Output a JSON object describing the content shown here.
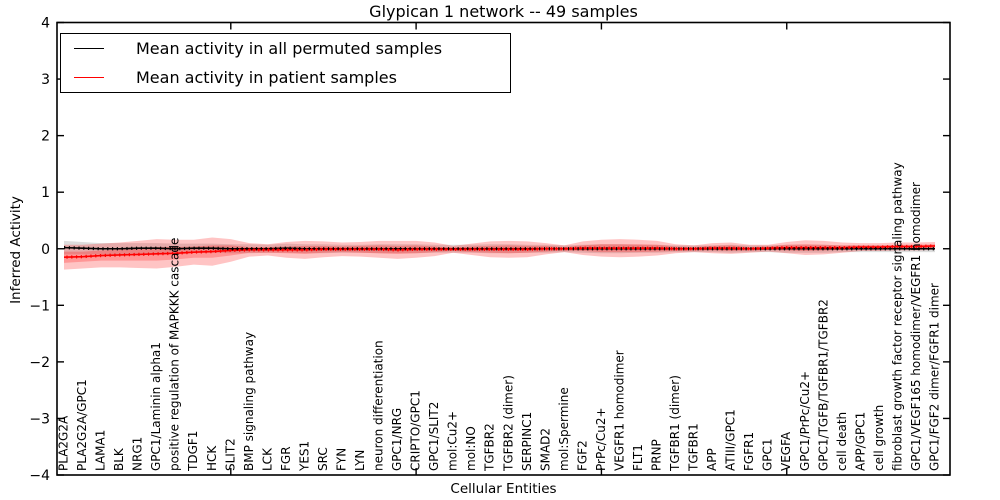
{
  "title": "Glypican 1 network -- 49 samples",
  "legend": {
    "items": [
      {
        "label": "Mean activity in all permuted samples",
        "color": "#000000"
      },
      {
        "label": "Mean activity in patient samples",
        "color": "#ff0000"
      }
    ]
  },
  "chart_data": {
    "type": "line",
    "title": "Glypican 1 network -- 49 samples",
    "xlabel": "Cellular Entities",
    "ylabel": "Inferred Activity",
    "ylim": [
      -4,
      4
    ],
    "yticks": [
      -4,
      -3,
      -2,
      -1,
      0,
      1,
      2,
      3,
      4
    ],
    "xtick_positions": [
      9,
      19,
      29,
      39
    ],
    "grid": false,
    "legend_position": "upper left",
    "frame_color": "#000000",
    "categories": [
      "PLA2G2A",
      "PLA2G2A/GPC1",
      "LAMA1",
      "BLK",
      "NRG1",
      "GPC1/Laminin alpha1",
      "positive regulation of MAPKKK cascade",
      "TDGF1",
      "HCK",
      "SLIT2",
      "BMP signaling pathway",
      "LCK",
      "FGR",
      "YES1",
      "SRC",
      "FYN",
      "LYN",
      "neuron differentiation",
      "GPC1/NRG",
      "CRIPTO/GPC1",
      "GPC1/SLIT2",
      "mol:Cu2+",
      "mol:NO",
      "TGFBR2",
      "TGFBR2 (dimer)",
      "SERPINC1",
      "SMAD2",
      "mol:Spermine",
      "FGF2",
      "PrPc/Cu2+",
      "VEGFR1 homodimer",
      "FLT1",
      "PRNP",
      "TGFBR1 (dimer)",
      "TGFBR1",
      "APP",
      "ATIII/GPC1",
      "FGFR1",
      "GPC1",
      "VEGFA",
      "GPC1/PrPc/Cu2+",
      "GPC1/TGFB/TGFBR1/TGFBR2",
      "cell death",
      "APP/GPC1",
      "cell growth",
      "fibroblast growth factor receptor signaling pathway",
      "GPC1/VEGF165 homodimer/VEGFR1 homodimer",
      "GPC1/FGF2 dimer/FGFR1 dimer"
    ],
    "series": [
      {
        "name": "Mean activity in all permuted samples",
        "color": "#000000",
        "band_fill": "rgba(100,100,100,0.22)",
        "values": [
          0.02,
          0.01,
          0,
          0,
          0.01,
          0.01,
          0,
          0.01,
          0.01,
          0,
          0,
          0,
          0.01,
          0,
          0,
          0,
          0,
          0,
          0,
          0,
          0,
          0,
          0,
          0,
          0,
          0,
          0,
          0,
          0,
          0,
          0,
          0,
          0,
          0,
          0,
          0,
          0,
          0,
          0,
          0,
          0,
          0,
          0,
          0,
          0,
          0,
          0,
          0
        ],
        "band_halfwidth": [
          0.12,
          0.11,
          0.1,
          0.1,
          0.09,
          0.09,
          0.09,
          0.08,
          0.08,
          0.08,
          0.08,
          0.07,
          0.08,
          0.08,
          0.08,
          0.07,
          0.07,
          0.08,
          0.08,
          0.08,
          0.07,
          0.07,
          0.07,
          0.08,
          0.08,
          0.07,
          0.07,
          0.06,
          0.07,
          0.08,
          0.08,
          0.07,
          0.07,
          0.06,
          0.06,
          0.06,
          0.07,
          0.06,
          0.06,
          0.07,
          0.07,
          0.07,
          0.06,
          0.06,
          0.06,
          0.06,
          0.06,
          0.06
        ]
      },
      {
        "name": "Mean activity in patient samples",
        "color": "#ff0000",
        "band_fill": "rgba(255,0,0,0.23)",
        "inner_band_fill": "rgba(255,0,0,0.23)",
        "values": [
          -0.15,
          -0.14,
          -0.12,
          -0.11,
          -0.1,
          -0.09,
          -0.08,
          -0.06,
          -0.05,
          -0.03,
          -0.02,
          -0.02,
          -0.02,
          -0.02,
          -0.01,
          -0.01,
          -0.01,
          -0.01,
          -0.02,
          -0.01,
          -0.01,
          -0.01,
          -0.01,
          -0.01,
          -0.01,
          -0.01,
          0.0,
          0.0,
          0.01,
          0.01,
          0.01,
          0.01,
          0.01,
          0.0,
          0.0,
          0.01,
          0.01,
          0.0,
          0.01,
          0.02,
          0.02,
          0.02,
          0.02,
          0.03,
          0.03,
          0.04,
          0.04,
          0.05
        ],
        "band_halfwidth": [
          0.22,
          0.21,
          0.21,
          0.22,
          0.24,
          0.26,
          0.24,
          0.22,
          0.25,
          0.2,
          0.12,
          0.1,
          0.14,
          0.16,
          0.14,
          0.12,
          0.13,
          0.15,
          0.16,
          0.15,
          0.12,
          0.06,
          0.1,
          0.14,
          0.15,
          0.14,
          0.1,
          0.06,
          0.12,
          0.15,
          0.16,
          0.15,
          0.13,
          0.08,
          0.06,
          0.09,
          0.1,
          0.07,
          0.06,
          0.1,
          0.13,
          0.12,
          0.09,
          0.07,
          0.07,
          0.07,
          0.07,
          0.07
        ],
        "inner_band_halfwidth": [
          0.1,
          0.09,
          0.09,
          0.1,
          0.11,
          0.12,
          0.11,
          0.1,
          0.11,
          0.09,
          0.05,
          0.05,
          0.06,
          0.07,
          0.06,
          0.05,
          0.06,
          0.07,
          0.07,
          0.07,
          0.05,
          0.03,
          0.05,
          0.06,
          0.07,
          0.06,
          0.05,
          0.03,
          0.05,
          0.07,
          0.07,
          0.07,
          0.06,
          0.04,
          0.03,
          0.04,
          0.05,
          0.03,
          0.03,
          0.05,
          0.06,
          0.05,
          0.04,
          0.03,
          0.03,
          0.03,
          0.03,
          0.03
        ]
      }
    ]
  }
}
